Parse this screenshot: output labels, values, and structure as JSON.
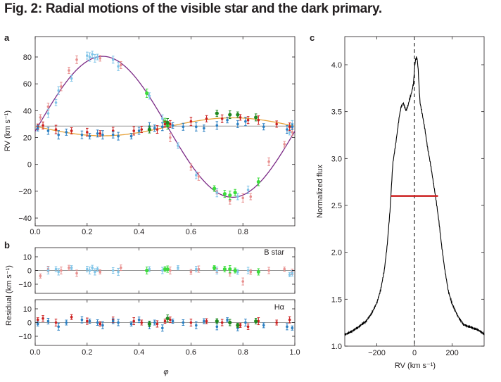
{
  "figure": {
    "title": "Fig. 2: Radial motions of the visible star and the dark primary.",
    "panel_labels": {
      "a": "a",
      "b": "b",
      "c": "c"
    }
  },
  "colors": {
    "pink": "#e8908f",
    "red": "#cc1f1f",
    "lightblue": "#7fc4e8",
    "blue": "#2a7fc2",
    "lightgreen": "#3cdc3c",
    "darkgreen": "#1f8a1f",
    "purple": "#7b2a86",
    "orange": "#e8a23a",
    "gray": "#999999",
    "black": "#000000"
  },
  "chart_data": [
    {
      "id": "a",
      "type": "scatter",
      "xlabel": "",
      "ylabel": "RV (km s⁻¹)",
      "xlim": [
        0,
        1
      ],
      "ylim": [
        -45,
        90
      ],
      "xticks": [
        "0.0",
        "0.2",
        "0.4",
        "0.6",
        "0.8"
      ],
      "yticks": [
        "−40",
        "−20",
        "0",
        "20",
        "40",
        "60",
        "80"
      ],
      "models": [
        {
          "curve": "sine",
          "gamma": 28,
          "K": 52.5,
          "phase0": 0.01,
          "color": "purple"
        },
        {
          "curve": "sine",
          "gamma": 28,
          "K": -6.7,
          "phase0": 0.01,
          "color": "orange"
        },
        {
          "curve": "flat",
          "value": 28.5,
          "color": "gray"
        }
      ],
      "series": [
        {
          "color": "pink",
          "x": [
            0.02,
            0.05,
            0.1,
            0.13,
            0.16,
            0.25,
            0.33,
            0.52,
            0.6,
            0.63,
            0.7,
            0.75,
            0.8,
            0.83,
            0.9,
            0.96,
            0.99
          ],
          "y": [
            35,
            43,
            58,
            70,
            78,
            79,
            74,
            20,
            -2,
            -9,
            -20,
            -27,
            -25,
            -24,
            2,
            15,
            24
          ]
        },
        {
          "color": "lightblue",
          "x": [
            0.05,
            0.08,
            0.09,
            0.14,
            0.2,
            0.21,
            0.22,
            0.23,
            0.24,
            0.3,
            0.32,
            0.44,
            0.49,
            0.55,
            0.62,
            0.7,
            0.78,
            0.82,
            0.98,
            0.99
          ],
          "y": [
            38,
            46,
            55,
            64,
            81,
            80,
            82,
            79,
            80,
            78,
            73,
            51,
            34,
            14,
            -8,
            -21,
            -24,
            -19,
            24,
            30
          ]
        },
        {
          "color": "lightgreen",
          "x": [
            0.43,
            0.5,
            0.51,
            0.69,
            0.73,
            0.75,
            0.77,
            0.86
          ],
          "y": [
            53,
            32,
            29,
            -18,
            -22,
            -23,
            -21,
            -13
          ]
        },
        {
          "color": "red",
          "x": [
            0.01,
            0.03,
            0.08,
            0.14,
            0.2,
            0.25,
            0.3,
            0.38,
            0.41,
            0.47,
            0.5,
            0.52,
            0.6,
            0.66,
            0.72,
            0.79,
            0.82,
            0.86,
            0.93,
            0.98
          ],
          "y": [
            28,
            29,
            26,
            25,
            24,
            23,
            25,
            25,
            26,
            26,
            30,
            30,
            32,
            34,
            34,
            35,
            33,
            33,
            30,
            28
          ]
        },
        {
          "color": "blue",
          "x": [
            0.01,
            0.05,
            0.09,
            0.12,
            0.18,
            0.21,
            0.24,
            0.26,
            0.3,
            0.32,
            0.37,
            0.4,
            0.44,
            0.46,
            0.49,
            0.53,
            0.57,
            0.62,
            0.65,
            0.7,
            0.74,
            0.78,
            0.81,
            0.88,
            0.97,
            0.99
          ],
          "y": [
            27,
            25,
            22,
            24,
            22,
            21,
            23,
            22,
            22,
            21,
            21,
            25,
            28,
            27,
            28,
            29,
            28,
            28,
            27,
            29,
            33,
            30,
            32,
            28,
            26,
            28
          ]
        },
        {
          "color": "darkgreen",
          "x": [
            0.44,
            0.51,
            0.7,
            0.75,
            0.78,
            0.85
          ],
          "y": [
            26,
            31,
            38,
            37,
            37,
            35
          ]
        }
      ],
      "errorbar_halfwidth": [
        4,
        6
      ]
    },
    {
      "id": "b-top",
      "type": "scatter",
      "annotation": "B star",
      "xlim": [
        0,
        1
      ],
      "ylim": [
        -17,
        17
      ],
      "yticks": [
        "−10",
        "0",
        "10"
      ],
      "ylabel": "Residual (km s⁻¹)",
      "series": [
        {
          "color": "pink",
          "x": [
            0.02,
            0.05,
            0.1,
            0.13,
            0.16,
            0.25,
            0.33,
            0.52,
            0.6,
            0.63,
            0.7,
            0.75,
            0.8,
            0.83,
            0.9,
            0.96,
            0.99
          ],
          "y": [
            -4,
            1,
            0,
            2,
            -2,
            -1,
            2,
            0,
            -1,
            1,
            0,
            -2,
            -8,
            -1,
            0,
            1,
            -1
          ]
        },
        {
          "color": "lightblue",
          "x": [
            0.05,
            0.08,
            0.09,
            0.14,
            0.2,
            0.21,
            0.22,
            0.23,
            0.24,
            0.3,
            0.32,
            0.44,
            0.49,
            0.55,
            0.62,
            0.7,
            0.78,
            0.82,
            0.98,
            0.99
          ],
          "y": [
            0,
            1,
            -1,
            2,
            1,
            0,
            2,
            -1,
            1,
            0,
            -1,
            1,
            0,
            2,
            1,
            0,
            -1,
            0,
            -3,
            -2
          ]
        },
        {
          "color": "lightgreen",
          "x": [
            0.43,
            0.5,
            0.51,
            0.69,
            0.73,
            0.75,
            0.77,
            0.86
          ],
          "y": [
            0,
            1,
            1,
            2,
            1,
            1,
            0,
            -1
          ]
        }
      ]
    },
    {
      "id": "b-bottom",
      "type": "scatter",
      "annotation": "Hα",
      "xlabel": "φ",
      "xlim": [
        0,
        1
      ],
      "ylim": [
        -17,
        17
      ],
      "xticks": [
        "0.0",
        "0.2",
        "0.4",
        "0.6",
        "0.8",
        "1.0"
      ],
      "yticks": [
        "−10",
        "0",
        "10"
      ],
      "series": [
        {
          "color": "red",
          "x": [
            0.01,
            0.03,
            0.08,
            0.14,
            0.2,
            0.25,
            0.3,
            0.38,
            0.41,
            0.47,
            0.5,
            0.52,
            0.6,
            0.66,
            0.72,
            0.79,
            0.82,
            0.86,
            0.93,
            0.98
          ],
          "y": [
            2,
            3,
            0,
            4,
            1,
            -1,
            2,
            1,
            0,
            -1,
            1,
            2,
            0,
            1,
            0,
            -2,
            -3,
            1,
            0,
            2
          ]
        },
        {
          "color": "blue",
          "x": [
            0.01,
            0.05,
            0.09,
            0.12,
            0.18,
            0.21,
            0.24,
            0.26,
            0.3,
            0.32,
            0.37,
            0.4,
            0.44,
            0.46,
            0.49,
            0.53,
            0.57,
            0.62,
            0.65,
            0.7,
            0.74,
            0.78,
            0.81,
            0.88,
            0.97,
            0.99
          ],
          "y": [
            -1,
            1,
            -3,
            0,
            2,
            1,
            0,
            -2,
            1,
            0,
            -1,
            2,
            -2,
            0,
            -4,
            1,
            0,
            -2,
            1,
            -3,
            2,
            -4,
            0,
            -2,
            -3,
            -4
          ]
        },
        {
          "color": "darkgreen",
          "x": [
            0.44,
            0.51,
            0.7,
            0.75,
            0.78,
            0.85
          ],
          "y": [
            -1,
            3,
            1,
            0,
            -2,
            1
          ]
        }
      ]
    },
    {
      "id": "c",
      "type": "line",
      "xlabel": "RV (km s⁻¹)",
      "ylabel": "Normalized flux",
      "xlim": [
        -370,
        370
      ],
      "ylim": [
        1.0,
        4.3
      ],
      "xticks": [
        {
          "v": -200,
          "label": "−200"
        },
        {
          "v": 0,
          "label": "0"
        },
        {
          "v": 200,
          "label": "200"
        }
      ],
      "yticks": [
        {
          "v": 1.0,
          "label": "1.0"
        },
        {
          "v": 1.5,
          "label": "1.5"
        },
        {
          "v": 2.0,
          "label": "2.0"
        },
        {
          "v": 2.5,
          "label": "2.5"
        },
        {
          "v": 3.0,
          "label": "3.0"
        },
        {
          "v": 3.5,
          "label": "3.5"
        },
        {
          "v": 4.0,
          "label": "4.0"
        }
      ],
      "profile": {
        "x": [
          -370,
          -340,
          -300,
          -260,
          -230,
          -200,
          -180,
          -160,
          -145,
          -130,
          -115,
          -100,
          -90,
          -80,
          -70,
          -60,
          -55,
          -45,
          -35,
          -25,
          -15,
          -5,
          0,
          5,
          10,
          15,
          20,
          25,
          30,
          40,
          55,
          70,
          85,
          100,
          115,
          130,
          145,
          160,
          180,
          200,
          230,
          260,
          300,
          340,
          370
        ],
        "y": [
          1.13,
          1.16,
          1.2,
          1.25,
          1.33,
          1.46,
          1.6,
          1.82,
          2.08,
          2.45,
          2.95,
          3.15,
          3.3,
          3.45,
          3.55,
          3.58,
          3.56,
          3.5,
          3.55,
          3.63,
          3.7,
          3.8,
          3.95,
          4.05,
          4.08,
          4.06,
          3.95,
          3.75,
          3.6,
          3.5,
          3.33,
          3.12,
          2.95,
          2.75,
          2.55,
          2.32,
          2.05,
          1.82,
          1.58,
          1.45,
          1.33,
          1.24,
          1.2,
          1.16,
          1.12
        ]
      },
      "fwhm_bar": {
        "x0": -125,
        "x1": 125,
        "y": 2.6,
        "color": "red"
      },
      "center_line": {
        "x": 0,
        "style": "dashed",
        "color": "black"
      }
    }
  ]
}
